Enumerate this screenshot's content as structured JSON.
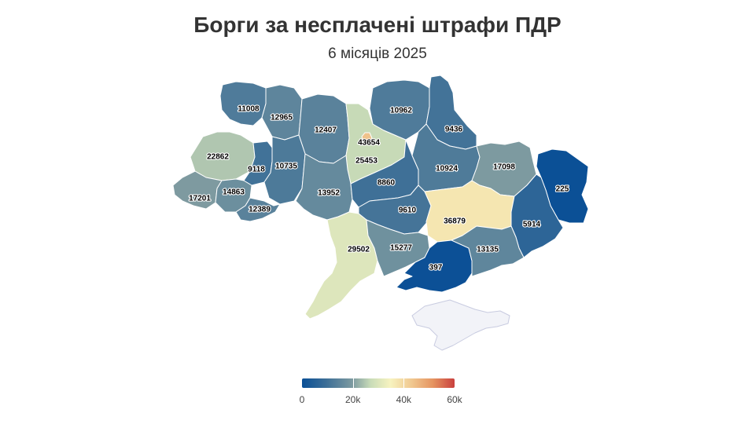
{
  "title": "Борги за несплачені штрафи ПДР",
  "subtitle": "6 місяців 2025",
  "scale": {
    "min": 0,
    "max": 60000,
    "colors": [
      "#0a4f96",
      "#3d6f97",
      "#7d9aa0",
      "#c9dcb8",
      "#f7f3c0",
      "#f0c78f",
      "#e59360",
      "#c9403e"
    ],
    "ticks": [
      {
        "value": 0,
        "label": "0"
      },
      {
        "value": 20000,
        "label": "20k"
      },
      {
        "value": 40000,
        "label": "40k"
      },
      {
        "value": 60000,
        "label": "60k"
      }
    ]
  },
  "no_data_color": "#f2f3f8",
  "regions": [
    {
      "id": "volyn",
      "value": 11008,
      "label": "11008"
    },
    {
      "id": "rivne",
      "value": 12965,
      "label": "12965"
    },
    {
      "id": "zhytomyr",
      "value": 12407,
      "label": "12407"
    },
    {
      "id": "kyiv-oblast",
      "value": 25453,
      "label": "25453"
    },
    {
      "id": "kyiv-city",
      "value": 43654,
      "label": "43654"
    },
    {
      "id": "chernihiv",
      "value": 10962,
      "label": "10962"
    },
    {
      "id": "sumy",
      "value": 9436,
      "label": "9436"
    },
    {
      "id": "lviv",
      "value": 22862,
      "label": "22862"
    },
    {
      "id": "ternopil",
      "value": 9118,
      "label": "9118"
    },
    {
      "id": "khmelnytskyi",
      "value": 10735,
      "label": "10735"
    },
    {
      "id": "zakarpattia",
      "value": 17201,
      "label": "17201"
    },
    {
      "id": "ivano-frankivsk",
      "value": 14863,
      "label": "14863"
    },
    {
      "id": "chernivtsi",
      "value": 12389,
      "label": "12389"
    },
    {
      "id": "vinnytsia",
      "value": 13952,
      "label": "13952"
    },
    {
      "id": "cherkasy",
      "value": 8860,
      "label": "8860"
    },
    {
      "id": "poltava",
      "value": 10924,
      "label": "10924"
    },
    {
      "id": "kharkiv",
      "value": 17098,
      "label": "17098"
    },
    {
      "id": "luhansk",
      "value": 225,
      "label": "225"
    },
    {
      "id": "kirovohrad",
      "value": 9610,
      "label": "9610"
    },
    {
      "id": "dnipropetrovsk",
      "value": 36879,
      "label": "36879"
    },
    {
      "id": "donetsk",
      "value": 5914,
      "label": "5914"
    },
    {
      "id": "odesa",
      "value": 29502,
      "label": "29502"
    },
    {
      "id": "mykolaiv",
      "value": 15277,
      "label": "15277"
    },
    {
      "id": "kherson",
      "value": 397,
      "label": "397"
    },
    {
      "id": "zaporizhzhia",
      "value": 13135,
      "label": "13135"
    }
  ]
}
